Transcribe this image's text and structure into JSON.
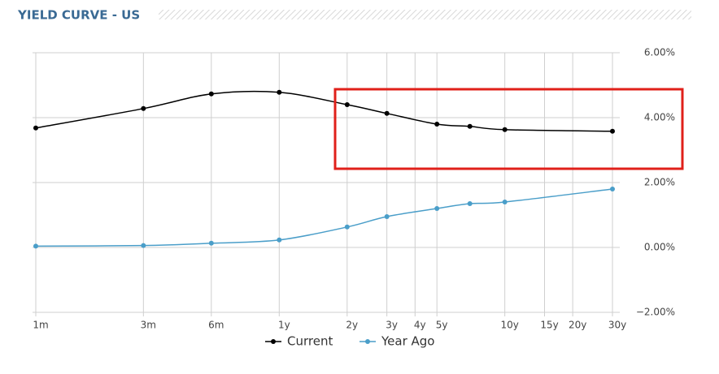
{
  "chart_data": {
    "type": "line",
    "title": "YIELD CURVE - US",
    "x": [
      1,
      3,
      6,
      12,
      24,
      36,
      60,
      84,
      120,
      360
    ],
    "xscale": "log",
    "xlim": [
      1,
      360
    ],
    "xticks": [
      {
        "value": 1,
        "label": "1m"
      },
      {
        "value": 3,
        "label": "3m"
      },
      {
        "value": 6,
        "label": "6m"
      },
      {
        "value": 12,
        "label": "1y"
      },
      {
        "value": 24,
        "label": "2y"
      },
      {
        "value": 36,
        "label": "3y"
      },
      {
        "value": 48,
        "label": "4y"
      },
      {
        "value": 60,
        "label": "5y"
      },
      {
        "value": 120,
        "label": "10y"
      },
      {
        "value": 180,
        "label": "15y"
      },
      {
        "value": 240,
        "label": "20y"
      },
      {
        "value": 360,
        "label": "30y"
      }
    ],
    "ylim": [
      -2,
      6
    ],
    "yticks": [
      {
        "value": -2,
        "label": "−2.00%"
      },
      {
        "value": 0,
        "label": "0.00%"
      },
      {
        "value": 2,
        "label": "2.00%"
      },
      {
        "value": 4,
        "label": "4.00%"
      },
      {
        "value": 6,
        "label": "6.00%"
      }
    ],
    "grid": true,
    "legend": "bottom",
    "series": [
      {
        "name": "Current",
        "color": "#000000",
        "values": [
          3.68,
          4.28,
          4.73,
          4.78,
          4.4,
          4.13,
          3.8,
          3.73,
          3.63,
          3.58
        ]
      },
      {
        "name": "Year Ago",
        "color": "#4a9ec9",
        "values": [
          0.04,
          0.06,
          0.13,
          0.23,
          0.63,
          0.95,
          1.2,
          1.35,
          1.4,
          1.8
        ]
      }
    ]
  }
}
